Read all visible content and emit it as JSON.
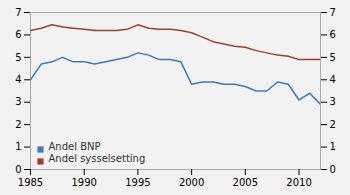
{
  "chart_data": {
    "type": "line",
    "x": [
      1985,
      1986,
      1987,
      1988,
      1989,
      1990,
      1991,
      1992,
      1993,
      1994,
      1995,
      1996,
      1997,
      1998,
      1999,
      2000,
      2001,
      2002,
      2003,
      2004,
      2005,
      2006,
      2007,
      2008,
      2009,
      2010,
      2011,
      2012
    ],
    "series": [
      {
        "name": "Andel BNP",
        "color": "#3a7abf",
        "values": [
          4.0,
          4.7,
          4.8,
          5.0,
          4.8,
          4.8,
          4.7,
          4.8,
          4.9,
          5.0,
          5.2,
          5.1,
          4.9,
          4.9,
          4.8,
          3.8,
          3.9,
          3.9,
          3.8,
          3.8,
          3.7,
          3.5,
          3.5,
          3.9,
          3.8,
          3.1,
          3.4,
          2.9
        ]
      },
      {
        "name": "Andel sysselsetting",
        "color": "#a0402a",
        "values": [
          6.2,
          6.3,
          6.45,
          6.35,
          6.3,
          6.25,
          6.2,
          6.2,
          6.2,
          6.25,
          6.45,
          6.3,
          6.25,
          6.25,
          6.2,
          6.1,
          5.9,
          5.7,
          5.6,
          5.5,
          5.45,
          5.3,
          5.2,
          5.1,
          5.05,
          4.9,
          4.9,
          4.9
        ]
      }
    ],
    "xlim": [
      1985,
      2012
    ],
    "xticks": [
      1985,
      1990,
      1995,
      2000,
      2005,
      2010
    ],
    "ylim": [
      0,
      7
    ],
    "yticks": [
      0,
      1,
      2,
      3,
      4,
      5,
      6,
      7
    ],
    "y2lim": [
      0,
      7
    ],
    "y2ticks": [
      0,
      1,
      2,
      3,
      4,
      5,
      6,
      7
    ],
    "legend": "lower left"
  }
}
